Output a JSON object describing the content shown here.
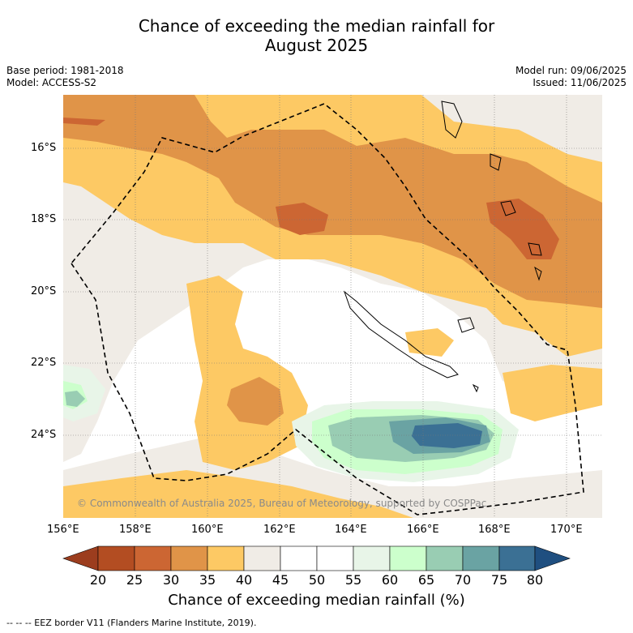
{
  "header": {
    "title_line1": "Chance of exceeding the median rainfall for",
    "title_line2": "August 2025",
    "base_period": "Base period: 1981-2018",
    "model": "Model: ACCESS-S2",
    "model_run": "Model run: 09/06/2025",
    "issued": "Issued: 11/06/2025"
  },
  "map": {
    "lon_labels": [
      "156°E",
      "158°E",
      "160°E",
      "162°E",
      "164°E",
      "166°E",
      "168°E",
      "170°E"
    ],
    "lat_labels": [
      "16°S",
      "18°S",
      "20°S",
      "22°S",
      "24°S"
    ],
    "credit": "© Commonwealth of Australia 2025, Bureau of Meteorology, supported by COSPPac",
    "colors": {
      "c20": "#9c3d1e",
      "c25": "#b34d22",
      "c30": "#cc6633",
      "c35": "#e09448",
      "c40": "#fdc964",
      "c45": "#f0ece6",
      "c50": "#ffffff",
      "c55": "#ffffff",
      "c60": "#e8f5e8",
      "c65": "#ccffcc",
      "c70": "#99cdb3",
      "c75": "#6aa3a3",
      "c80": "#3b7094",
      "c85": "#1f4f80"
    }
  },
  "colorbar": {
    "ticks": [
      "20",
      "25",
      "30",
      "35",
      "40",
      "45",
      "50",
      "55",
      "60",
      "65",
      "70",
      "75",
      "80"
    ],
    "title": "Chance of exceeding median rainfall (%)"
  },
  "footer": {
    "legend": "--  --  -- EEZ border V11 (Flanders Marine Institute, 2019)."
  }
}
